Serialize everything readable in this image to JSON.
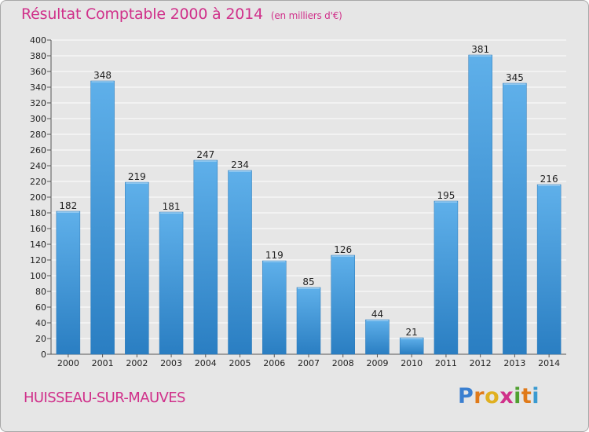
{
  "header": {
    "title": "Résultat Comptable 2000 à 2014",
    "unit": "(en milliers d'€)"
  },
  "footer": {
    "town": "HUISSEAU-SUR-MAUVES",
    "logo_letters": [
      "P",
      "r",
      "o",
      "x",
      "i",
      "t",
      "i"
    ],
    "logo_colors": [
      "#3a7fd0",
      "#e07a1a",
      "#e0b020",
      "#d0308a",
      "#50a030",
      "#e07a1a",
      "#3a9ad0"
    ]
  },
  "colors": {
    "title": "#d0308a",
    "bar_light": "#5fb0ea",
    "bar_dark": "#2a7ec2",
    "plot_bg": "#e6e6e6",
    "grid": "#ffffff"
  },
  "chart_data": {
    "type": "bar",
    "title": "Résultat Comptable 2000 à 2014",
    "subtitle": "(en milliers d'€)",
    "xlabel": "",
    "ylabel": "",
    "categories": [
      "2000",
      "2001",
      "2002",
      "2003",
      "2004",
      "2005",
      "2006",
      "2007",
      "2008",
      "2009",
      "2010",
      "2011",
      "2012",
      "2013",
      "2014"
    ],
    "values": [
      182,
      348,
      219,
      181,
      247,
      234,
      119,
      85,
      126,
      44,
      21,
      195,
      381,
      345,
      216
    ],
    "ylim": [
      0,
      400
    ],
    "ytick_step": 20,
    "grid": true,
    "legend": "none"
  }
}
